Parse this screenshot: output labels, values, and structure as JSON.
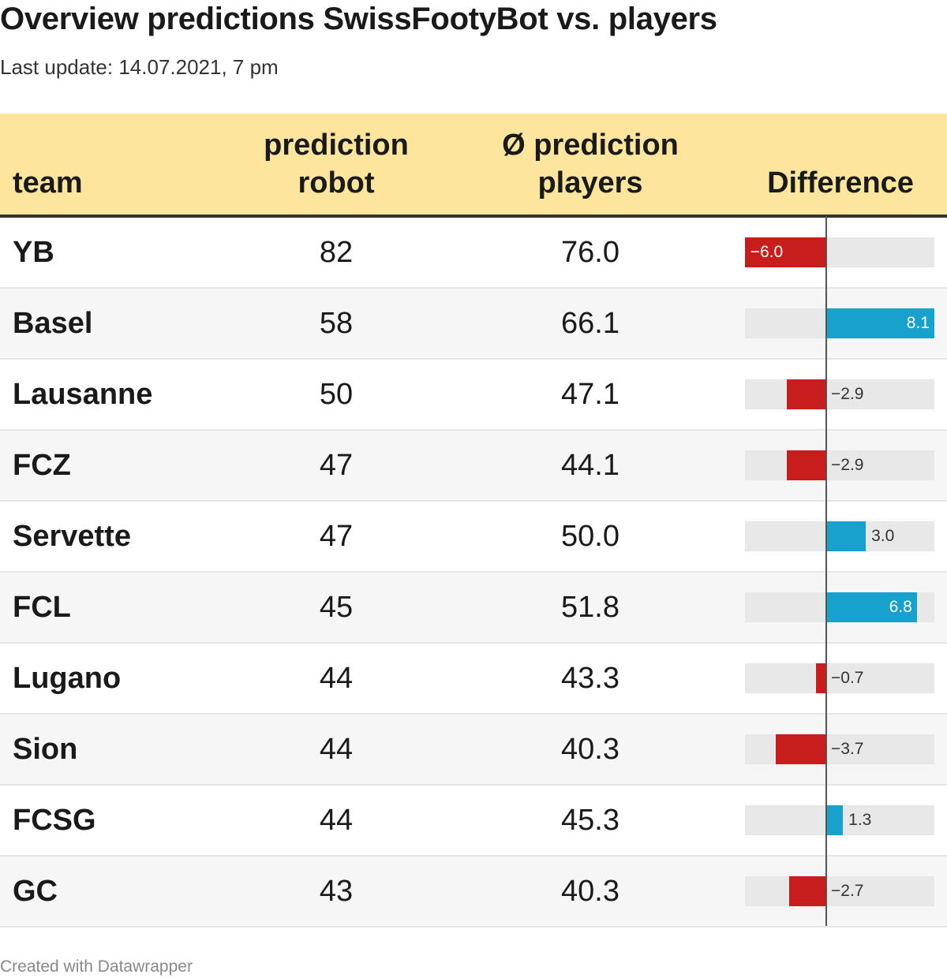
{
  "title": "Overview predictions SwissFootyBot vs. players",
  "subtitle": "Last update: 14.07.2021, 7 pm",
  "footer": "Created with Datawrapper",
  "columns": {
    "team": "team",
    "robot": [
      "prediction",
      "robot"
    ],
    "players": [
      "Ø prediction",
      "players"
    ],
    "difference": "Difference"
  },
  "colors": {
    "header_bg": "#fde59e",
    "negative": "#c71e1d",
    "positive": "#18a1cd",
    "track": "#e8e8e8"
  },
  "chart_data": {
    "type": "table",
    "title": "Overview predictions SwissFootyBot vs. players",
    "subtitle": "Last update: 14.07.2021, 7 pm",
    "difference_range": [
      -6.0,
      8.1
    ],
    "rows": [
      {
        "team": "YB",
        "robot": "82",
        "players": "76.0",
        "difference": -6.0,
        "difference_label": "−6.0"
      },
      {
        "team": "Basel",
        "robot": "58",
        "players": "66.1",
        "difference": 8.1,
        "difference_label": "8.1"
      },
      {
        "team": "Lausanne",
        "robot": "50",
        "players": "47.1",
        "difference": -2.9,
        "difference_label": "−2.9"
      },
      {
        "team": "FCZ",
        "robot": "47",
        "players": "44.1",
        "difference": -2.9,
        "difference_label": "−2.9"
      },
      {
        "team": "Servette",
        "robot": "47",
        "players": "50.0",
        "difference": 3.0,
        "difference_label": "3.0"
      },
      {
        "team": "FCL",
        "robot": "45",
        "players": "51.8",
        "difference": 6.8,
        "difference_label": "6.8"
      },
      {
        "team": "Lugano",
        "robot": "44",
        "players": "43.3",
        "difference": -0.7,
        "difference_label": "−0.7"
      },
      {
        "team": "Sion",
        "robot": "44",
        "players": "40.3",
        "difference": -3.7,
        "difference_label": "−3.7"
      },
      {
        "team": "FCSG",
        "robot": "44",
        "players": "45.3",
        "difference": 1.3,
        "difference_label": "1.3"
      },
      {
        "team": "GC",
        "robot": "43",
        "players": "40.3",
        "difference": -2.7,
        "difference_label": "−2.7"
      }
    ]
  }
}
